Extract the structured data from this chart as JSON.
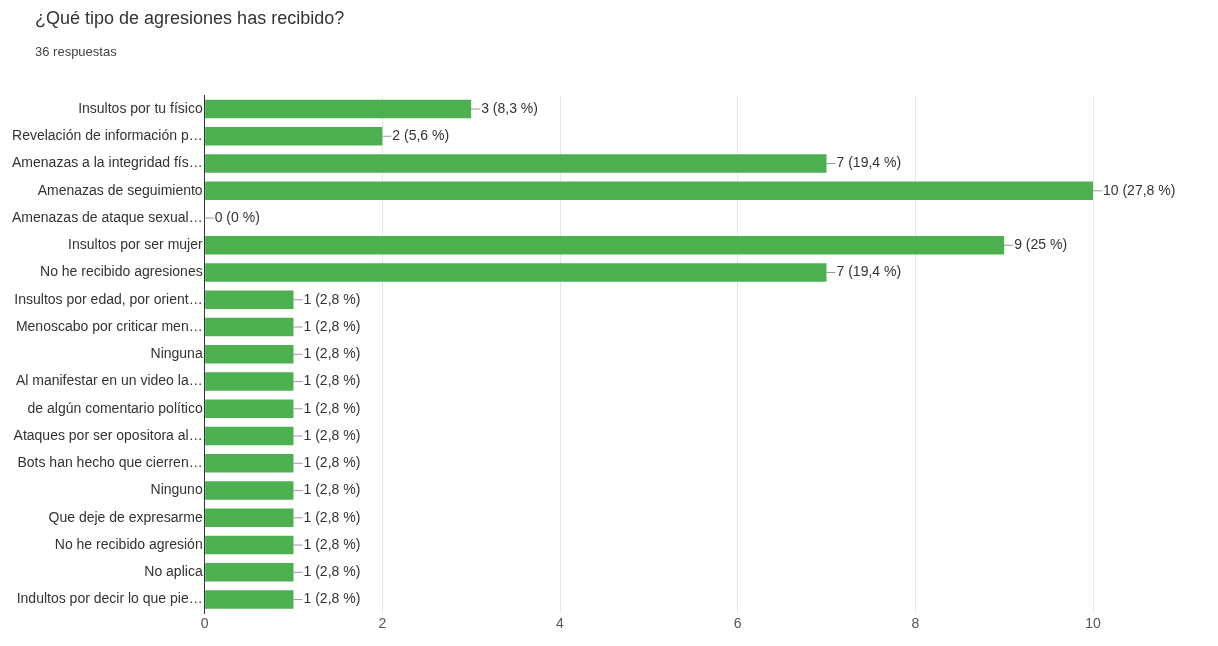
{
  "chart_data": {
    "type": "bar",
    "orientation": "horizontal",
    "title": "¿Qué tipo de agresiones has recibido?",
    "subtitle": "36 respuestas",
    "categories": [
      "Insultos por tu físico",
      "Revelación de información p…",
      "Amenazas a la integridad fís…",
      "Amenazas de seguimiento",
      "Amenazas de ataque sexual…",
      "Insultos por ser mujer",
      "No he recibido agresiones",
      "Insultos por edad, por orient…",
      "Menoscabo por criticar men…",
      "Ninguna",
      "Al manifestar en un video la…",
      "de algún comentario político",
      "Ataques por ser opositora al…",
      "Bots han hecho que cierren…",
      "Ninguno",
      "Que deje de expresarme",
      "No he recibido agresión",
      "No aplica",
      "Indultos por decir lo que pie…"
    ],
    "values": [
      3,
      2,
      7,
      10,
      0,
      9,
      7,
      1,
      1,
      1,
      1,
      1,
      1,
      1,
      1,
      1,
      1,
      1,
      1
    ],
    "value_labels": [
      "3 (8,3 %)",
      "2 (5,6 %)",
      "7 (19,4 %)",
      "10 (27,8 %)",
      "0 (0 %)",
      "9 (25 %)",
      "7 (19,4 %)",
      "1 (2,8 %)",
      "1 (2,8 %)",
      "1 (2,8 %)",
      "1 (2,8 %)",
      "1 (2,8 %)",
      "1 (2,8 %)",
      "1 (2,8 %)",
      "1 (2,8 %)",
      "1 (2,8 %)",
      "1 (2,8 %)",
      "1 (2,8 %)",
      "1 (2,8 %)"
    ],
    "color": "#4caf50",
    "xlim": [
      0,
      10
    ],
    "xticks": [
      0,
      2,
      4,
      6,
      8,
      10
    ],
    "grid": "x",
    "legend": false
  }
}
